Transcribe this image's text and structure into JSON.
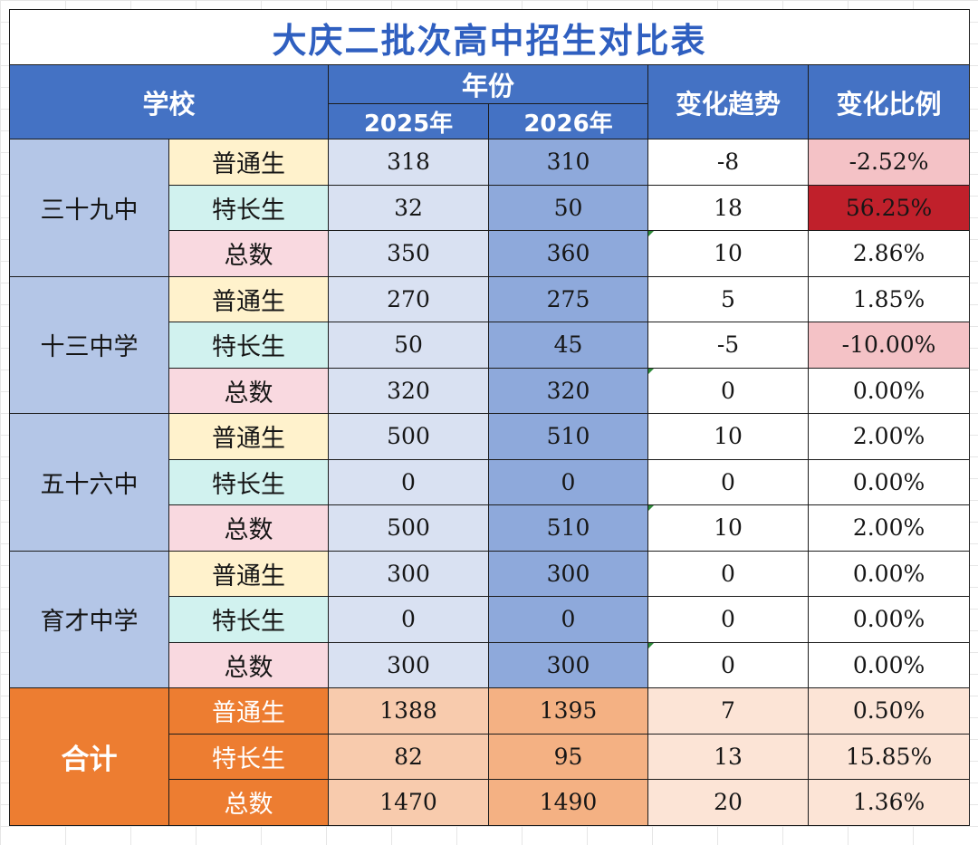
{
  "title": "大庆二批次高中招生对比表",
  "header": {
    "school": "学校",
    "year_group": "年份",
    "year_a": "2025年",
    "year_b": "2026年",
    "trend": "变化趋势",
    "ratio": "变化比例"
  },
  "schools": [
    {
      "name": "三十九中",
      "rows": [
        {
          "category": "普通生",
          "y2025": "318",
          "y2026": "310",
          "change": "-8",
          "ratio": "-2.52%"
        },
        {
          "category": "特长生",
          "y2025": "32",
          "y2026": "50",
          "change": "18",
          "ratio": "56.25%"
        },
        {
          "category": "总数",
          "y2025": "350",
          "y2026": "360",
          "change": "10",
          "ratio": "2.86%"
        }
      ]
    },
    {
      "name": "十三中学",
      "rows": [
        {
          "category": "普通生",
          "y2025": "270",
          "y2026": "275",
          "change": "5",
          "ratio": "1.85%"
        },
        {
          "category": "特长生",
          "y2025": "50",
          "y2026": "45",
          "change": "-5",
          "ratio": "-10.00%"
        },
        {
          "category": "总数",
          "y2025": "320",
          "y2026": "320",
          "change": "0",
          "ratio": "0.00%"
        }
      ]
    },
    {
      "name": "五十六中",
      "rows": [
        {
          "category": "普通生",
          "y2025": "500",
          "y2026": "510",
          "change": "10",
          "ratio": "2.00%"
        },
        {
          "category": "特长生",
          "y2025": "0",
          "y2026": "0",
          "change": "0",
          "ratio": "0.00%"
        },
        {
          "category": "总数",
          "y2025": "500",
          "y2026": "510",
          "change": "10",
          "ratio": "2.00%"
        }
      ]
    },
    {
      "name": "育才中学",
      "rows": [
        {
          "category": "普通生",
          "y2025": "300",
          "y2026": "300",
          "change": "0",
          "ratio": "0.00%"
        },
        {
          "category": "特长生",
          "y2025": "0",
          "y2026": "0",
          "change": "0",
          "ratio": "0.00%"
        },
        {
          "category": "总数",
          "y2025": "300",
          "y2026": "300",
          "change": "0",
          "ratio": "0.00%"
        }
      ]
    },
    {
      "name": "合计",
      "rows": [
        {
          "category": "普通生",
          "y2025": "1388",
          "y2026": "1395",
          "change": "7",
          "ratio": "0.50%"
        },
        {
          "category": "特长生",
          "y2025": "82",
          "y2026": "95",
          "change": "13",
          "ratio": "15.85%"
        },
        {
          "category": "总数",
          "y2025": "1470",
          "y2026": "1490",
          "change": "20",
          "ratio": "1.36%"
        }
      ]
    }
  ],
  "colors": {
    "title_text": "#2f5fc0",
    "header_bg": "#4472c4",
    "school_bg": "#b4c6e7",
    "regular_bg": "#fff2cc",
    "specialty_bg": "#d1f2ef",
    "total_bg": "#f9d9e0",
    "y2025_bg": "#d9e1f2",
    "y2026_bg": "#8ea9db",
    "negative_ratio_bg": "#f4c2c6",
    "high_ratio_bg": "#c0202b",
    "sum_row_bg": "#ed7d31"
  }
}
